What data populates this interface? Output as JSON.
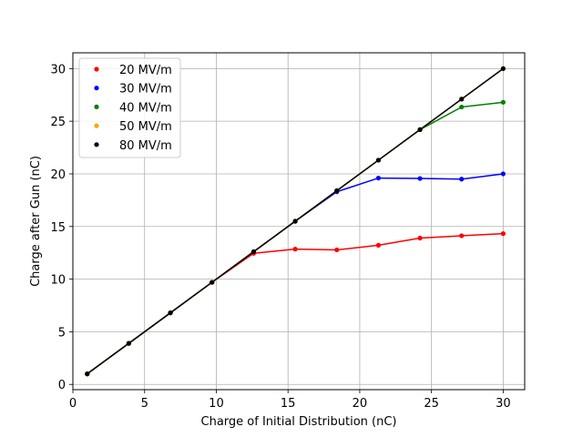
{
  "chart_data": {
    "type": "line",
    "title": "",
    "xlabel": "Charge of Initial Distribution (nC)",
    "ylabel": "Charge after Gun (nC)",
    "xlim": [
      0,
      31.5
    ],
    "ylim": [
      -0.5,
      31.5
    ],
    "xticks": [
      0,
      5,
      10,
      15,
      20,
      25,
      30
    ],
    "yticks": [
      0,
      5,
      10,
      15,
      20,
      25,
      30
    ],
    "grid": true,
    "legend_position": "top-left",
    "x": [
      1.0,
      3.9,
      6.8,
      9.7,
      12.6,
      15.5,
      18.4,
      21.3,
      24.2,
      27.1,
      30.0
    ],
    "series": [
      {
        "name": "20 MV/m",
        "color": "#ff0000",
        "values": [
          1.0,
          3.9,
          6.8,
          9.7,
          12.45,
          12.85,
          12.78,
          13.22,
          13.9,
          14.12,
          14.32
        ]
      },
      {
        "name": "30 MV/m",
        "color": "#0000ff",
        "values": [
          1.0,
          3.9,
          6.8,
          9.7,
          12.6,
          15.5,
          18.3,
          19.6,
          19.56,
          19.5,
          20.0
        ]
      },
      {
        "name": "40 MV/m",
        "color": "#008000",
        "values": [
          1.0,
          3.9,
          6.8,
          9.7,
          12.6,
          15.5,
          18.4,
          21.3,
          24.2,
          26.35,
          26.8
        ]
      },
      {
        "name": "50 MV/m",
        "color": "#ffa500",
        "values": [
          1.0,
          3.9,
          6.8,
          9.7,
          12.6,
          15.5,
          18.4,
          21.3,
          24.2,
          27.1,
          30.0
        ]
      },
      {
        "name": "80 MV/m",
        "color": "#000000",
        "values": [
          1.0,
          3.9,
          6.8,
          9.7,
          12.6,
          15.5,
          18.4,
          21.3,
          24.2,
          27.1,
          30.0
        ]
      }
    ]
  }
}
